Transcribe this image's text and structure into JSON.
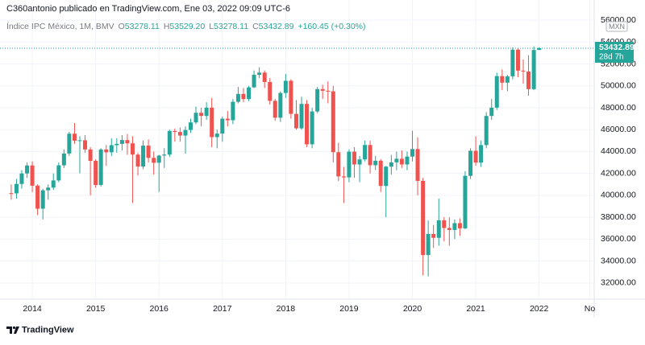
{
  "header": {
    "publisher": "C360antonio publicado en TradingView.com, Ene 03, 2022 09:09 UTC-6"
  },
  "footer": {
    "brand": "TradingView"
  },
  "chart_data": {
    "type": "candlestick",
    "legend": {
      "symbol": "Índice IPC México, 1M, BMV",
      "items": [
        {
          "key": "O",
          "value": "53278.11"
        },
        {
          "key": "H",
          "value": "53529.20"
        },
        {
          "key": "L",
          "value": "53278.11"
        },
        {
          "key": "C",
          "value": "53432.89"
        }
      ],
      "change": "+160.45 (+0.30%)"
    },
    "currency": "MXN",
    "countdown": "28d 7h",
    "up_color": "#26a69a",
    "down_color": "#ef5350",
    "x": [
      2013.667,
      2013.75,
      2013.833,
      2013.917,
      2014.0,
      2014.083,
      2014.167,
      2014.25,
      2014.333,
      2014.417,
      2014.5,
      2014.583,
      2014.667,
      2014.75,
      2014.833,
      2014.917,
      2015.0,
      2015.083,
      2015.167,
      2015.25,
      2015.333,
      2015.417,
      2015.5,
      2015.583,
      2015.667,
      2015.75,
      2015.833,
      2015.917,
      2016.0,
      2016.083,
      2016.167,
      2016.25,
      2016.333,
      2016.417,
      2016.5,
      2016.583,
      2016.667,
      2016.75,
      2016.833,
      2016.917,
      2017.0,
      2017.083,
      2017.167,
      2017.25,
      2017.333,
      2017.417,
      2017.5,
      2017.583,
      2017.667,
      2017.75,
      2017.833,
      2017.917,
      2018.0,
      2018.083,
      2018.167,
      2018.25,
      2018.333,
      2018.417,
      2018.5,
      2018.583,
      2018.667,
      2018.75,
      2018.833,
      2018.917,
      2019.0,
      2019.083,
      2019.167,
      2019.25,
      2019.333,
      2019.417,
      2019.5,
      2019.583,
      2019.667,
      2019.75,
      2019.833,
      2019.917,
      2020.0,
      2020.083,
      2020.167,
      2020.25,
      2020.333,
      2020.417,
      2020.5,
      2020.583,
      2020.667,
      2020.75,
      2020.833,
      2020.917,
      2021.0,
      2021.083,
      2021.167,
      2021.25,
      2021.333,
      2021.417,
      2021.5,
      2021.583,
      2021.667,
      2021.75,
      2021.833,
      2021.917,
      2022.0
    ],
    "open": [
      40200,
      40180,
      41040,
      42000,
      42730,
      40880,
      38780,
      40460,
      40710,
      41360,
      42740,
      43820,
      45630,
      44990,
      45030,
      44190,
      43150,
      40950,
      44190,
      43930,
      44580,
      44700,
      45050,
      44750,
      43720,
      42630,
      44540,
      43420,
      42980,
      43630,
      43720,
      45880,
      45790,
      45460,
      45970,
      46660,
      47540,
      47250,
      48010,
      45320,
      45640,
      47000,
      46860,
      48540,
      49260,
      48790,
      49860,
      51010,
      51210,
      50350,
      48630,
      47090,
      49350,
      50460,
      47440,
      46120,
      48350,
      44660,
      47660,
      49700,
      49550,
      49500,
      43940,
      41730,
      41640,
      43990,
      42820,
      43280,
      44600,
      42750,
      43160,
      40860,
      42620,
      43010,
      43340,
      42820,
      43540,
      44230,
      41320,
      34550,
      36470,
      36120,
      37720,
      37020,
      36840,
      37460,
      36990,
      41780,
      44070,
      42990,
      44590,
      47250,
      48010,
      50890,
      50290,
      50870,
      53300,
      51390,
      51310,
      49700,
      53278.11
    ],
    "high": [
      41000,
      41500,
      42300,
      43000,
      43100,
      41000,
      40600,
      41000,
      42000,
      43000,
      44200,
      45800,
      46600,
      45400,
      45500,
      44400,
      43300,
      44300,
      44600,
      45200,
      45200,
      45500,
      45600,
      45400,
      43900,
      45000,
      45100,
      44000,
      43700,
      44300,
      46000,
      46100,
      46200,
      46300,
      47000,
      48100,
      48000,
      48500,
      48900,
      46000,
      47200,
      47700,
      48800,
      49900,
      49800,
      50000,
      51400,
      51700,
      51400,
      50700,
      48800,
      49500,
      51100,
      50600,
      48700,
      49000,
      48700,
      48000,
      49900,
      50100,
      50400,
      50000,
      44800,
      42600,
      44200,
      44400,
      43600,
      45000,
      45000,
      43600,
      43300,
      42700,
      43700,
      44000,
      44100,
      44000,
      45900,
      45300,
      41600,
      37700,
      37300,
      39700,
      38000,
      38000,
      37800,
      37900,
      42200,
      44300,
      45400,
      45000,
      47600,
      48800,
      51200,
      51500,
      51000,
      53500,
      53400,
      52400,
      52800,
      53600,
      53529.2
    ],
    "low": [
      39600,
      39700,
      40600,
      41600,
      40300,
      38200,
      37800,
      39600,
      40500,
      41200,
      42500,
      43600,
      44700,
      42000,
      43900,
      40000,
      40700,
      40800,
      42700,
      43600,
      43900,
      44100,
      43700,
      39300,
      41800,
      42400,
      43000,
      41900,
      40300,
      42500,
      43500,
      44900,
      44900,
      43800,
      45700,
      46500,
      46300,
      46900,
      44400,
      44300,
      44900,
      46300,
      46500,
      48400,
      48500,
      48600,
      49800,
      50700,
      49800,
      48300,
      46800,
      46700,
      48900,
      47000,
      46000,
      46000,
      44400,
      44300,
      47500,
      48800,
      48400,
      43000,
      41300,
      39300,
      41200,
      41600,
      41200,
      43100,
      42000,
      42300,
      40300,
      38000,
      41900,
      42300,
      42500,
      42300,
      43100,
      40000,
      32700,
      32600,
      35200,
      35400,
      35800,
      35400,
      36000,
      36300,
      36900,
      41500,
      42700,
      42600,
      44300,
      46900,
      47800,
      49600,
      49500,
      50600,
      50800,
      50200,
      49100,
      49600,
      53278.11
    ],
    "close": [
      40180,
      41040,
      42000,
      42730,
      40880,
      38780,
      40460,
      40710,
      41360,
      42740,
      43820,
      45630,
      44990,
      45030,
      44190,
      43150,
      40950,
      44190,
      43930,
      44580,
      44700,
      45050,
      44750,
      43720,
      42630,
      44540,
      43420,
      42980,
      43630,
      43720,
      45880,
      45790,
      45460,
      45970,
      46660,
      47540,
      47250,
      48010,
      45320,
      45640,
      47000,
      46860,
      48540,
      49260,
      48790,
      49860,
      51010,
      51210,
      50350,
      48630,
      47090,
      49350,
      50460,
      47440,
      46120,
      48350,
      44660,
      47660,
      49700,
      49550,
      49500,
      43940,
      41730,
      41640,
      43990,
      42820,
      43280,
      44600,
      42750,
      43160,
      40860,
      42620,
      43010,
      43340,
      42820,
      43540,
      44230,
      41320,
      34550,
      36470,
      36120,
      37720,
      37020,
      36840,
      37460,
      36990,
      41780,
      44070,
      42990,
      44590,
      47250,
      48010,
      50890,
      50290,
      50870,
      53300,
      51390,
      51310,
      49700,
      53270,
      53432.89
    ],
    "xlim": [
      2013.49,
      2022.87
    ],
    "xticks": [
      2014,
      2015,
      2016,
      2017,
      2018,
      2019,
      2020,
      2021,
      2022,
      {
        "value": 2022.8,
        "label": "No"
      }
    ],
    "ylim": [
      30519,
      56370
    ],
    "yticks": [
      {
        "value": 32000,
        "label": "32000.00"
      },
      {
        "value": 34000,
        "label": "34000.00"
      },
      {
        "value": 36000,
        "label": "36000.00"
      },
      {
        "value": 38000,
        "label": "38000.00"
      },
      {
        "value": 40000,
        "label": "40000.00"
      },
      {
        "value": 42000,
        "label": "42000.00"
      },
      {
        "value": 44000,
        "label": "44000.00"
      },
      {
        "value": 46000,
        "label": "46000.00"
      },
      {
        "value": 48000,
        "label": "48000.00"
      },
      {
        "value": 50000,
        "label": "50000.00"
      },
      {
        "value": 52000,
        "label": "52000.00"
      },
      {
        "value": 54000,
        "label": "54000.00"
      },
      {
        "value": 56000,
        "label": "56000.00"
      }
    ],
    "grid": true
  }
}
